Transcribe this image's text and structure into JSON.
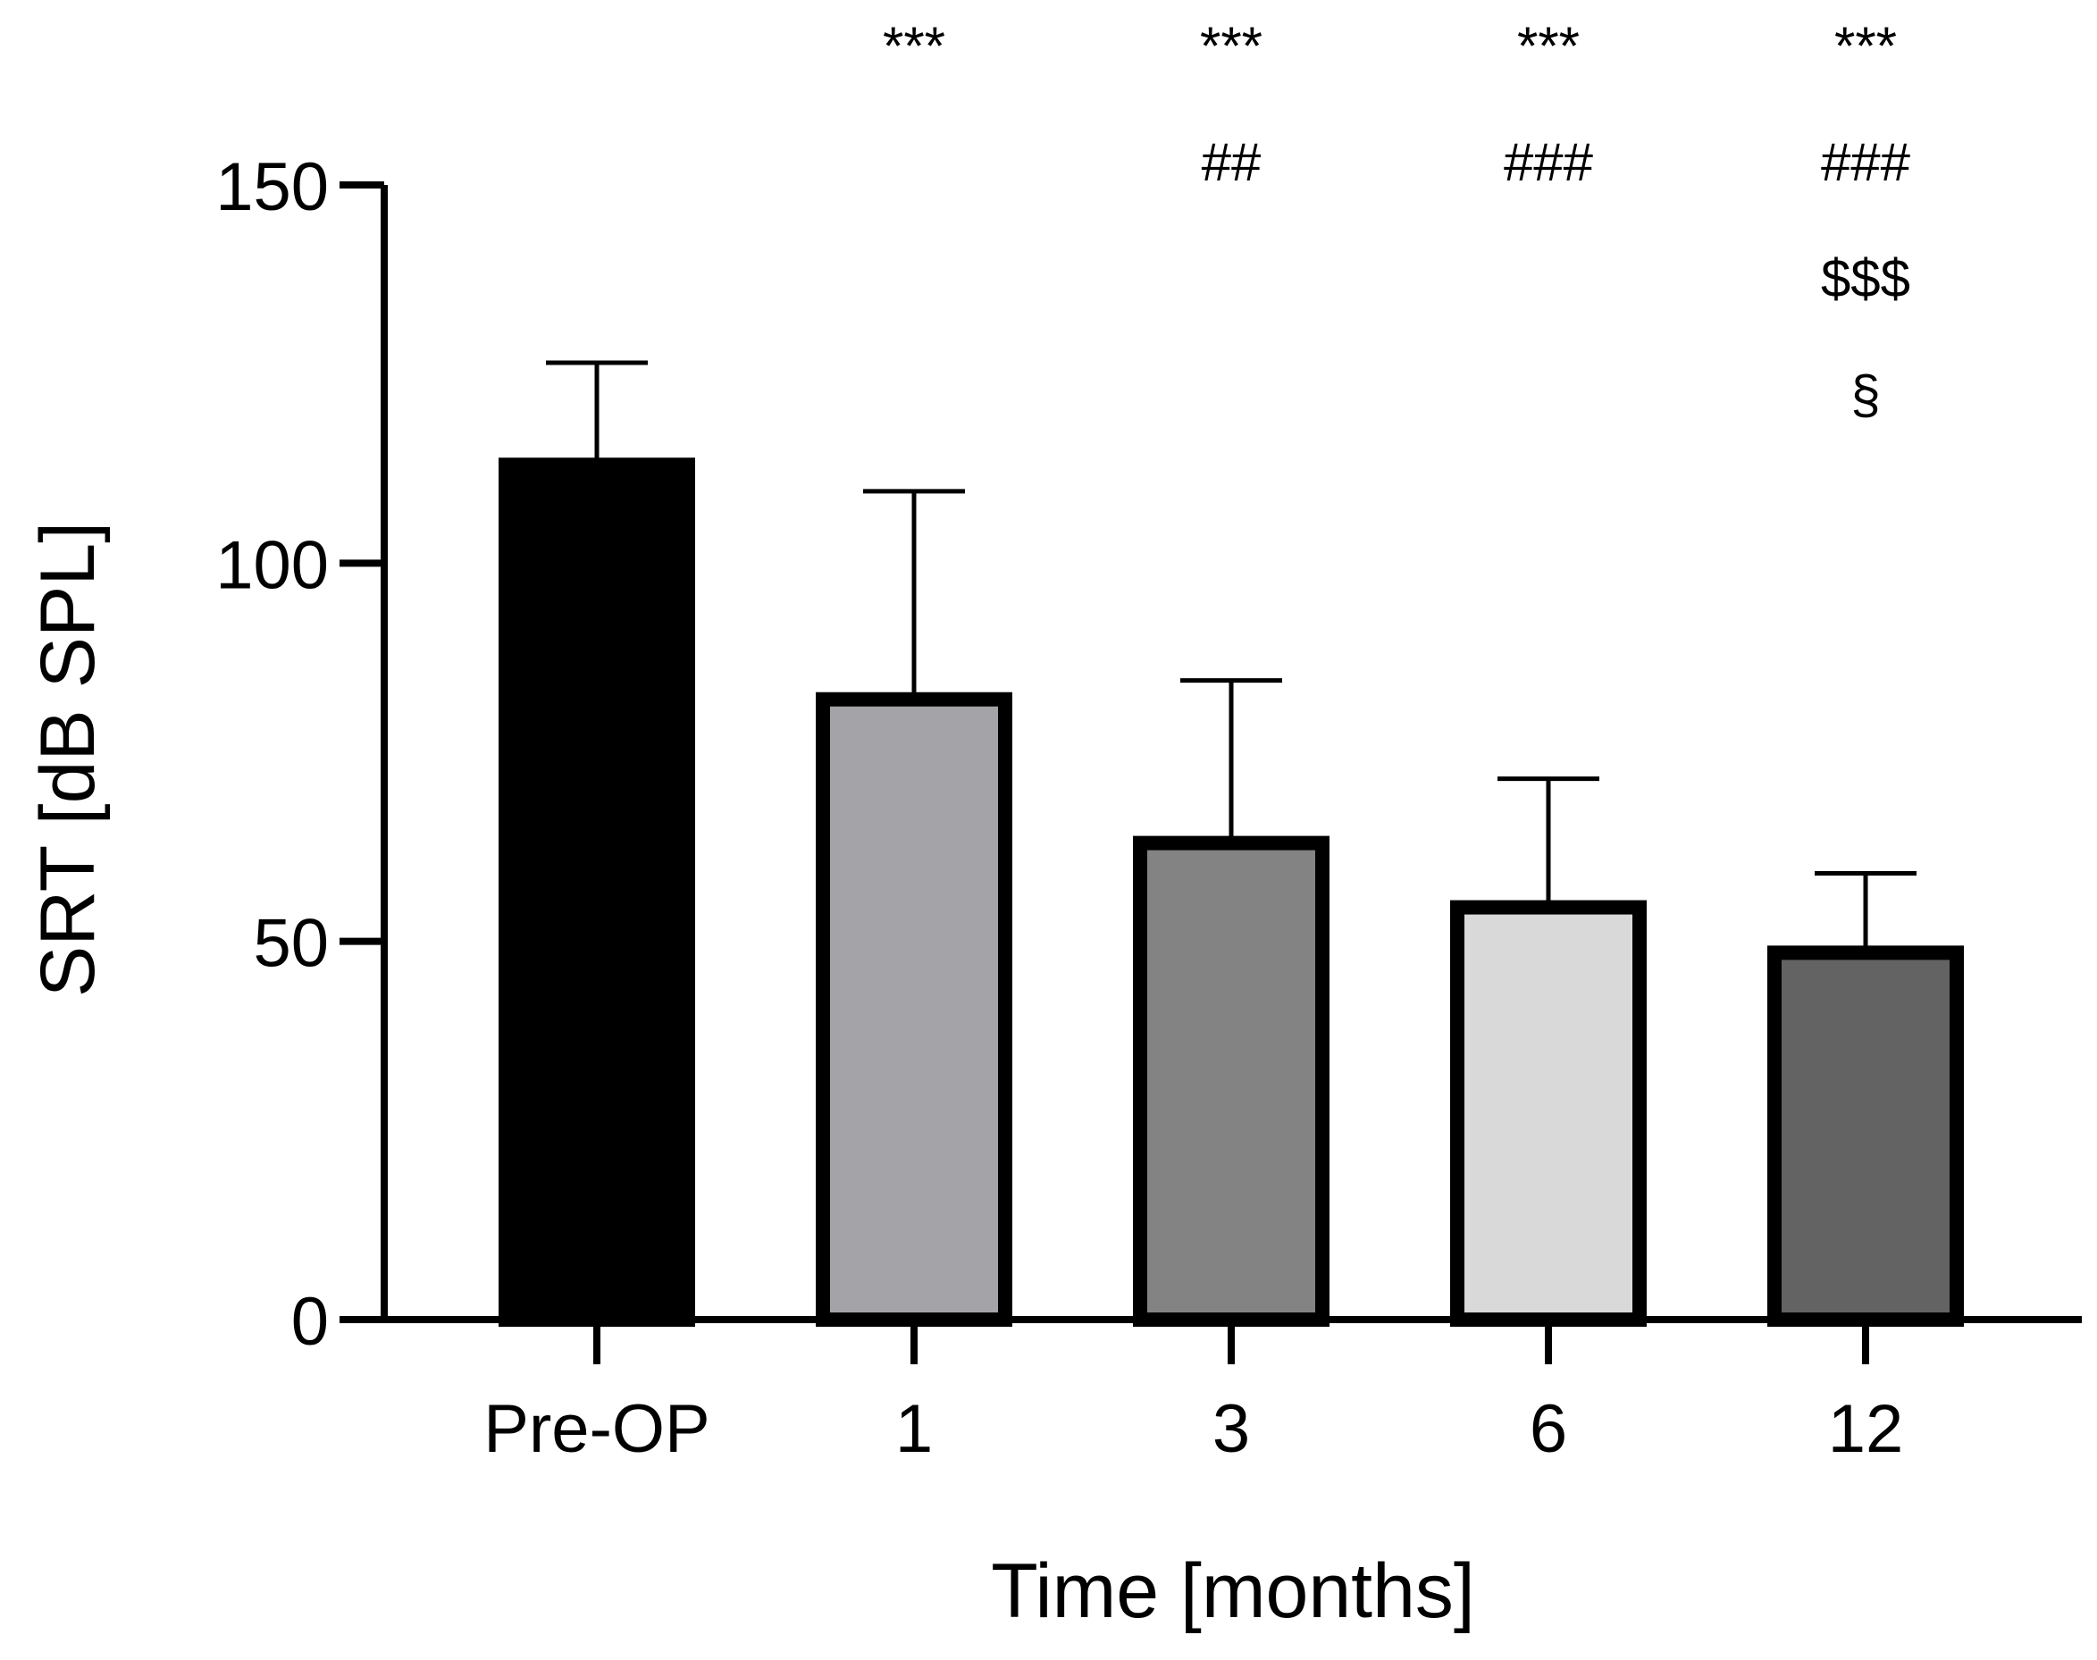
{
  "chart_data": {
    "type": "bar",
    "title": "",
    "xlabel": "Time [months]",
    "ylabel": "SRT [dB SPL]",
    "ylim": [
      0,
      150
    ],
    "yticks": [
      0,
      50,
      100,
      150
    ],
    "grid": false,
    "categories": [
      "Pre-OP",
      "1",
      "3",
      "6",
      "12"
    ],
    "values": [
      113,
      82,
      63,
      54.5,
      48.5
    ],
    "error_upper": [
      126.5,
      109.5,
      84.5,
      71.5,
      59
    ],
    "colors": [
      "#000000",
      "#a4a3a8",
      "#838383",
      "#d9d9d9",
      "#636363"
    ],
    "annotations": [
      [],
      [
        "***"
      ],
      [
        "***",
        "##"
      ],
      [
        "***",
        "###"
      ],
      [
        "***",
        "###",
        "$$$",
        "§"
      ]
    ]
  }
}
